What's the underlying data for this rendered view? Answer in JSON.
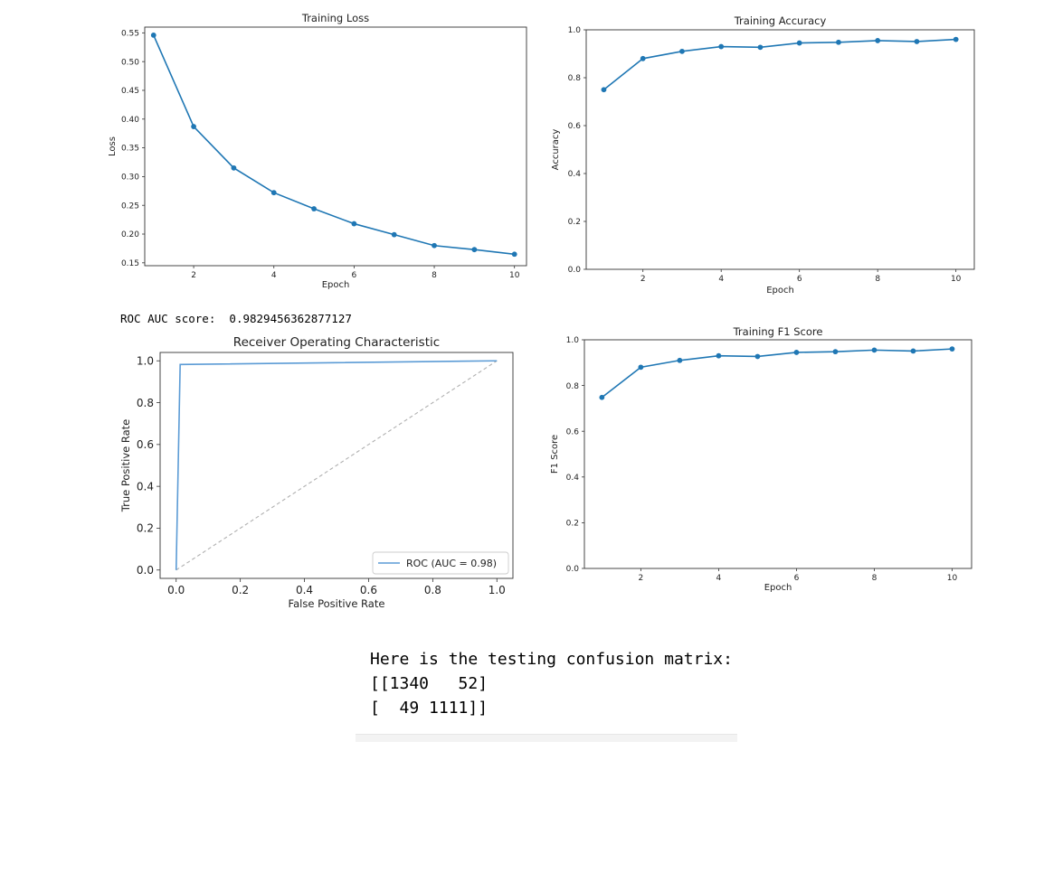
{
  "colors": {
    "series": "#1f77b4",
    "roc_line": "#5b9bd5",
    "diagonal": "#b0b0b0"
  },
  "chart_data": [
    {
      "id": "loss",
      "type": "line",
      "title": "Training Loss",
      "xlabel": "Epoch",
      "ylabel": "Loss",
      "x": [
        1,
        2,
        3,
        4,
        5,
        6,
        7,
        8,
        9,
        10
      ],
      "values": [
        0.546,
        0.387,
        0.315,
        0.272,
        0.244,
        0.218,
        0.199,
        0.18,
        0.173,
        0.165
      ],
      "xlim": [
        0.78,
        10.3
      ],
      "ylim": [
        0.145,
        0.56
      ],
      "xticks": [
        2,
        4,
        6,
        8,
        10
      ],
      "yticks": [
        0.15,
        0.2,
        0.25,
        0.3,
        0.35,
        0.4,
        0.45,
        0.5,
        0.55
      ],
      "ytick_labels": [
        "0.15",
        "0.20",
        "0.25",
        "0.30",
        "0.35",
        "0.40",
        "0.45",
        "0.50",
        "0.55"
      ]
    },
    {
      "id": "accuracy",
      "type": "line",
      "title": "Training Accuracy",
      "xlabel": "Epoch",
      "ylabel": "Accuracy",
      "x": [
        1,
        2,
        3,
        4,
        5,
        6,
        7,
        8,
        9,
        10
      ],
      "values": [
        0.75,
        0.88,
        0.91,
        0.93,
        0.927,
        0.945,
        0.948,
        0.955,
        0.951,
        0.96
      ],
      "xlim": [
        0.55,
        10.47
      ],
      "ylim": [
        0.0,
        1.0
      ],
      "xticks": [
        2,
        4,
        6,
        8,
        10
      ],
      "yticks": [
        0.0,
        0.2,
        0.4,
        0.6,
        0.8,
        1.0
      ],
      "ytick_labels": [
        "0.0",
        "0.2",
        "0.4",
        "0.6",
        "0.8",
        "1.0"
      ]
    },
    {
      "id": "roc",
      "type": "line",
      "title": "Receiver Operating Characteristic",
      "xlabel": "False Positive Rate",
      "ylabel": "True Positive Rate",
      "series": [
        {
          "name": "ROC (AUC = 0.98)",
          "x": [
            0.0,
            0.0125,
            1.0
          ],
          "y": [
            0.0,
            0.9825,
            1.0
          ]
        }
      ],
      "baseline": {
        "x": [
          0.0,
          1.0
        ],
        "y": [
          0.0,
          1.0
        ]
      },
      "xlim": [
        -0.05,
        1.05
      ],
      "ylim": [
        -0.04,
        1.04
      ],
      "xticks": [
        0.0,
        0.2,
        0.4,
        0.6,
        0.8,
        1.0
      ],
      "yticks": [
        0.0,
        0.2,
        0.4,
        0.6,
        0.8,
        1.0
      ],
      "xtick_labels": [
        "0.0",
        "0.2",
        "0.4",
        "0.6",
        "0.8",
        "1.0"
      ],
      "ytick_labels": [
        "0.0",
        "0.2",
        "0.4",
        "0.6",
        "0.8",
        "1.0"
      ],
      "legend": "lower right"
    },
    {
      "id": "f1",
      "type": "line",
      "title": "Training F1 Score",
      "xlabel": "Epoch",
      "ylabel": "F1 Score",
      "x": [
        1,
        2,
        3,
        4,
        5,
        6,
        7,
        8,
        9,
        10
      ],
      "values": [
        0.748,
        0.88,
        0.91,
        0.93,
        0.927,
        0.945,
        0.948,
        0.955,
        0.951,
        0.96
      ],
      "xlim": [
        0.55,
        10.5
      ],
      "ylim": [
        0.0,
        1.0
      ],
      "xticks": [
        2,
        4,
        6,
        8,
        10
      ],
      "yticks": [
        0.0,
        0.2,
        0.4,
        0.6,
        0.8,
        1.0
      ],
      "ytick_labels": [
        "0.0",
        "0.2",
        "0.4",
        "0.6",
        "0.8",
        "1.0"
      ]
    }
  ],
  "roc_auc": {
    "label": "ROC AUC score:",
    "value": "0.9829456362877127"
  },
  "confusion": {
    "heading": "Here is the testing confusion matrix:",
    "row1": "[[1340   52]",
    "row2": "[  49 1111]]"
  }
}
